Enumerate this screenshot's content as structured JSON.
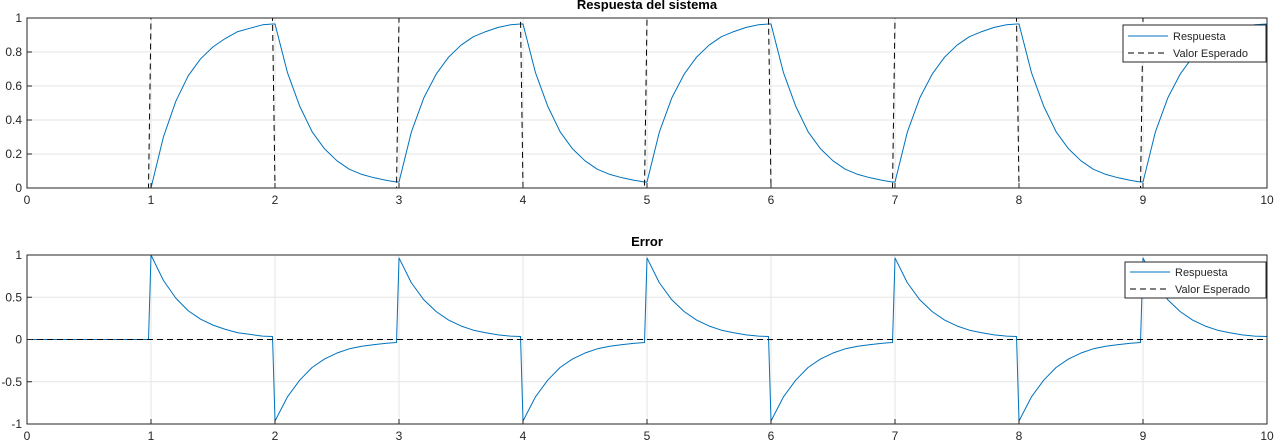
{
  "chart_data": [
    {
      "type": "line",
      "title": "Respuesta del sistema",
      "xlabel": "",
      "ylabel": "",
      "xlim": [
        0,
        10
      ],
      "ylim": [
        0,
        1
      ],
      "xticks": [
        "0",
        "1",
        "2",
        "3",
        "4",
        "5",
        "6",
        "7",
        "8",
        "9",
        "10"
      ],
      "yticks": [
        "0",
        "0.2",
        "0.4",
        "0.6",
        "0.8",
        "1"
      ],
      "grid": true,
      "legend_position": "top-right",
      "series": [
        {
          "name": "Respuesta",
          "style": "solid",
          "color": "#0072BD",
          "x": [
            0,
            0.98,
            1.0,
            1.1,
            1.2,
            1.3,
            1.4,
            1.5,
            1.6,
            1.7,
            1.8,
            1.9,
            1.98,
            2.0,
            2.1,
            2.2,
            2.3,
            2.4,
            2.5,
            2.6,
            2.7,
            2.8,
            2.9,
            2.98,
            3.0,
            3.1,
            3.2,
            3.3,
            3.4,
            3.5,
            3.6,
            3.7,
            3.8,
            3.9,
            3.98,
            4.0,
            4.1,
            4.2,
            4.3,
            4.4,
            4.5,
            4.6,
            4.7,
            4.8,
            4.9,
            4.98,
            5.0,
            5.1,
            5.2,
            5.3,
            5.4,
            5.5,
            5.6,
            5.7,
            5.8,
            5.9,
            5.98,
            6.0,
            6.1,
            6.2,
            6.3,
            6.4,
            6.5,
            6.6,
            6.7,
            6.8,
            6.9,
            6.98,
            7.0,
            7.1,
            7.2,
            7.3,
            7.4,
            7.5,
            7.6,
            7.7,
            7.8,
            7.9,
            7.98,
            8.0,
            8.1,
            8.2,
            8.3,
            8.4,
            8.5,
            8.6,
            8.7,
            8.8,
            8.9,
            8.98,
            9.0,
            9.1,
            9.2,
            9.3,
            9.4,
            9.5,
            9.6,
            9.7,
            9.8,
            9.9,
            10.0
          ],
          "y": [
            0,
            0,
            0,
            0.3,
            0.51,
            0.66,
            0.76,
            0.83,
            0.88,
            0.92,
            0.94,
            0.96,
            0.965,
            0.965,
            0.68,
            0.48,
            0.33,
            0.23,
            0.16,
            0.11,
            0.08,
            0.06,
            0.045,
            0.035,
            0.035,
            0.33,
            0.53,
            0.67,
            0.77,
            0.84,
            0.89,
            0.92,
            0.945,
            0.96,
            0.965,
            0.965,
            0.68,
            0.48,
            0.33,
            0.23,
            0.16,
            0.11,
            0.08,
            0.06,
            0.045,
            0.035,
            0.035,
            0.33,
            0.53,
            0.67,
            0.77,
            0.84,
            0.89,
            0.92,
            0.945,
            0.96,
            0.965,
            0.965,
            0.68,
            0.48,
            0.33,
            0.23,
            0.16,
            0.11,
            0.08,
            0.06,
            0.045,
            0.035,
            0.035,
            0.33,
            0.53,
            0.67,
            0.77,
            0.84,
            0.89,
            0.92,
            0.945,
            0.96,
            0.965,
            0.965,
            0.68,
            0.48,
            0.33,
            0.23,
            0.16,
            0.11,
            0.08,
            0.06,
            0.045,
            0.035,
            0.035,
            0.33,
            0.53,
            0.67,
            0.77,
            0.84,
            0.89,
            0.92,
            0.945,
            0.96,
            0.965
          ]
        },
        {
          "name": "Valor Esperado",
          "style": "dashed",
          "color": "#000000",
          "x": [
            0,
            0.98,
            1.0,
            1.98,
            2.0,
            2.98,
            3.0,
            3.98,
            4.0,
            4.98,
            5.0,
            5.98,
            6.0,
            6.98,
            7.0,
            7.98,
            8.0,
            8.98,
            9.0,
            10.0
          ],
          "y": [
            0,
            0,
            1,
            1,
            0,
            0,
            1,
            1,
            0,
            0,
            1,
            1,
            0,
            0,
            1,
            1,
            0,
            0,
            1,
            1
          ]
        }
      ]
    },
    {
      "type": "line",
      "title": "Error",
      "xlabel": "",
      "ylabel": "",
      "xlim": [
        0,
        10
      ],
      "ylim": [
        -1,
        1
      ],
      "xticks": [
        "0",
        "1",
        "2",
        "3",
        "4",
        "5",
        "6",
        "7",
        "8",
        "9",
        "10"
      ],
      "yticks": [
        "-1",
        "-0.5",
        "0",
        "0.5",
        "1"
      ],
      "grid": true,
      "legend_position": "top-right",
      "series": [
        {
          "name": "Respuesta",
          "style": "solid",
          "color": "#0072BD",
          "x": [
            0,
            0.98,
            1.0,
            1.1,
            1.2,
            1.3,
            1.4,
            1.5,
            1.6,
            1.7,
            1.8,
            1.9,
            1.98,
            2.0,
            2.1,
            2.2,
            2.3,
            2.4,
            2.5,
            2.6,
            2.7,
            2.8,
            2.9,
            2.98,
            3.0,
            3.1,
            3.2,
            3.3,
            3.4,
            3.5,
            3.6,
            3.7,
            3.8,
            3.9,
            3.98,
            4.0,
            4.1,
            4.2,
            4.3,
            4.4,
            4.5,
            4.6,
            4.7,
            4.8,
            4.9,
            4.98,
            5.0,
            5.1,
            5.2,
            5.3,
            5.4,
            5.5,
            5.6,
            5.7,
            5.8,
            5.9,
            5.98,
            6.0,
            6.1,
            6.2,
            6.3,
            6.4,
            6.5,
            6.6,
            6.7,
            6.8,
            6.9,
            6.98,
            7.0,
            7.1,
            7.2,
            7.3,
            7.4,
            7.5,
            7.6,
            7.7,
            7.8,
            7.9,
            7.98,
            8.0,
            8.1,
            8.2,
            8.3,
            8.4,
            8.5,
            8.6,
            8.7,
            8.8,
            8.9,
            8.98,
            9.0,
            9.1,
            9.2,
            9.3,
            9.4,
            9.5,
            9.6,
            9.7,
            9.8,
            9.9,
            10.0
          ],
          "y": [
            0,
            0,
            1.0,
            0.7,
            0.49,
            0.34,
            0.24,
            0.17,
            0.12,
            0.08,
            0.06,
            0.04,
            0.035,
            -0.965,
            -0.68,
            -0.48,
            -0.33,
            -0.23,
            -0.16,
            -0.11,
            -0.08,
            -0.06,
            -0.045,
            -0.035,
            0.965,
            0.67,
            0.47,
            0.33,
            0.23,
            0.16,
            0.11,
            0.08,
            0.055,
            0.04,
            0.035,
            -0.965,
            -0.68,
            -0.48,
            -0.33,
            -0.23,
            -0.16,
            -0.11,
            -0.08,
            -0.06,
            -0.045,
            -0.035,
            0.965,
            0.67,
            0.47,
            0.33,
            0.23,
            0.16,
            0.11,
            0.08,
            0.055,
            0.04,
            0.035,
            -0.965,
            -0.68,
            -0.48,
            -0.33,
            -0.23,
            -0.16,
            -0.11,
            -0.08,
            -0.06,
            -0.045,
            -0.035,
            0.965,
            0.67,
            0.47,
            0.33,
            0.23,
            0.16,
            0.11,
            0.08,
            0.055,
            0.04,
            0.035,
            -0.965,
            -0.68,
            -0.48,
            -0.33,
            -0.23,
            -0.16,
            -0.11,
            -0.08,
            -0.06,
            -0.045,
            -0.035,
            0.965,
            0.67,
            0.47,
            0.33,
            0.23,
            0.16,
            0.11,
            0.08,
            0.055,
            0.04,
            0.035
          ]
        },
        {
          "name": "Valor Esperado",
          "style": "dashed",
          "color": "#000000",
          "x": [
            0,
            10
          ],
          "y": [
            0,
            0
          ]
        }
      ]
    }
  ],
  "colors": {
    "axis": "#262626",
    "grid": "#e6e6e6",
    "background": "#ffffff"
  }
}
